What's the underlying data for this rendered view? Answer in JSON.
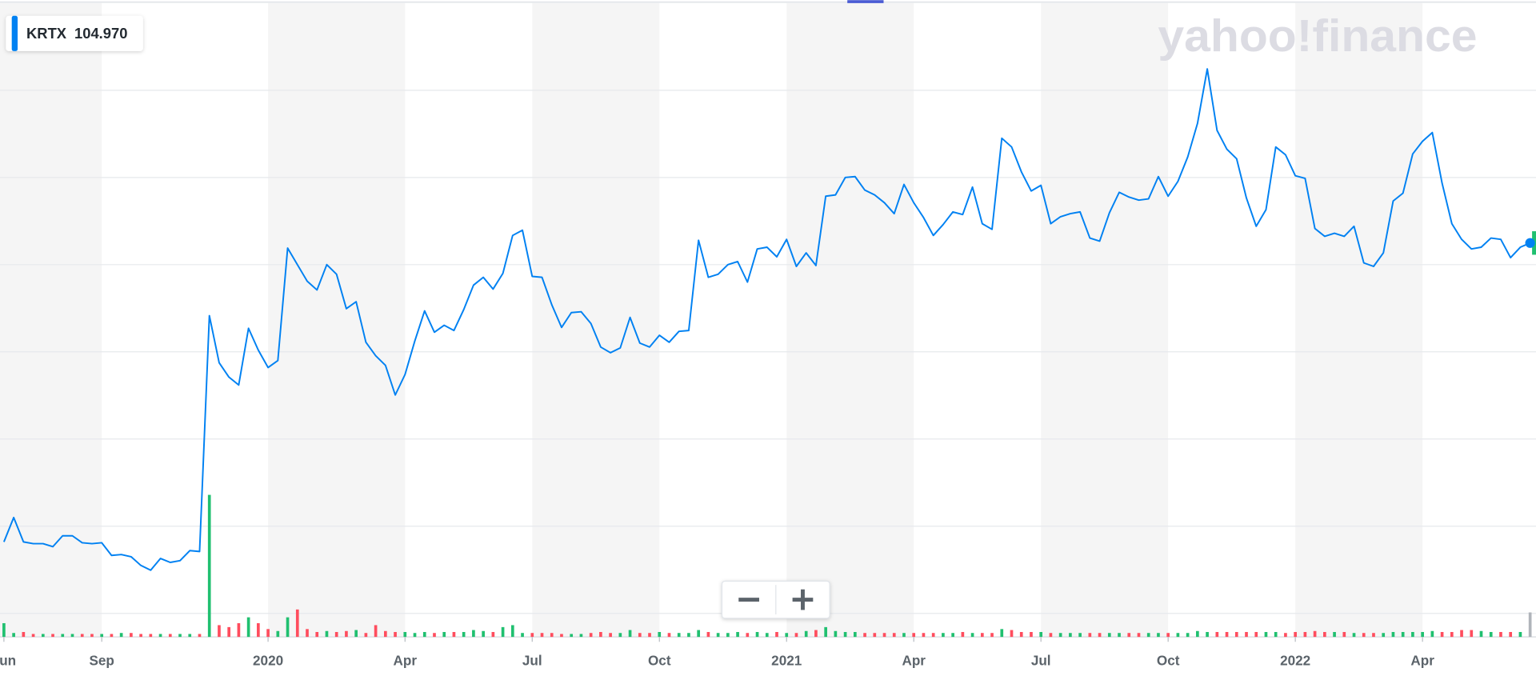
{
  "chart_data": {
    "type": "line",
    "watermark": "yahoo!finance",
    "price_label": "104.970",
    "categories": [
      "Jun",
      null,
      null,
      null,
      null,
      null,
      null,
      null,
      null,
      null,
      "Sep",
      null,
      null,
      null,
      null,
      null,
      null,
      null,
      null,
      null,
      null,
      null,
      null,
      null,
      null,
      null,
      null,
      "2020",
      null,
      null,
      null,
      null,
      null,
      null,
      null,
      null,
      null,
      null,
      null,
      null,
      null,
      "Apr",
      null,
      null,
      null,
      null,
      null,
      null,
      null,
      null,
      null,
      null,
      null,
      null,
      "Jul",
      null,
      null,
      null,
      null,
      null,
      null,
      null,
      null,
      null,
      null,
      null,
      null,
      "Oct",
      null,
      null,
      null,
      null,
      null,
      null,
      null,
      null,
      null,
      null,
      null,
      null,
      "2021",
      null,
      null,
      null,
      null,
      null,
      null,
      null,
      null,
      null,
      null,
      null,
      null,
      "Apr",
      null,
      null,
      null,
      null,
      null,
      null,
      null,
      null,
      null,
      null,
      null,
      null,
      "Jul",
      null,
      null,
      null,
      null,
      null,
      null,
      null,
      null,
      null,
      null,
      null,
      null,
      "Oct",
      null,
      null,
      null,
      null,
      null,
      null,
      null,
      null,
      null,
      null,
      null,
      null,
      "2022",
      null,
      null,
      null,
      null,
      null,
      null,
      null,
      null,
      null,
      null,
      null,
      null,
      "Apr",
      null,
      null,
      null,
      null,
      null,
      null,
      null,
      null,
      null,
      null,
      null
    ],
    "series": [
      {
        "name": "KRTX",
        "color": "#0081f2",
        "values": [
          36.4,
          42.0,
          36.4,
          36.0,
          36.0,
          35.3,
          37.8,
          37.8,
          36.2,
          36.0,
          36.2,
          33.3,
          33.5,
          33.0,
          31.0,
          29.9,
          32.6,
          31.7,
          32.1,
          34.4,
          34.2,
          88.3,
          77.5,
          74.2,
          72.4,
          85.4,
          80.4,
          76.4,
          78.0,
          103.8,
          100,
          96.2,
          94.2,
          100,
          97.8,
          89.9,
          91.5,
          82.2,
          79.1,
          76.9,
          70.1,
          74.8,
          82.5,
          89.4,
          84.5,
          86.1,
          84.9,
          89.7,
          95.3,
          97.1,
          94.4,
          98.0,
          106.7,
          107.9,
          97.3,
          97.1,
          90.8,
          85.6,
          89.0,
          89.2,
          86.5,
          81.1,
          79.8,
          80.9,
          87.9,
          82.0,
          81.1,
          83.8,
          82.2,
          84.7,
          84.9,
          105.6,
          97.1,
          97.8,
          100,
          100.7,
          96.0,
          103.6,
          104.0,
          101.8,
          105.8,
          99.6,
          102.7,
          99.8,
          115.7,
          116.0,
          120.0,
          120.2,
          117.1,
          116.0,
          114.2,
          111.7,
          118.4,
          114.2,
          110.8,
          106.7,
          109.2,
          112.1,
          111.5,
          117.8,
          109.4,
          108.1,
          129.0,
          127.0,
          121.3,
          116.9,
          118.2,
          109.4,
          111.0,
          111.7,
          112.1,
          106.1,
          105.4,
          111.9,
          116.6,
          115.5,
          114.8,
          115.1,
          120.2,
          115.7,
          119.1,
          124.7,
          132.4,
          144.9,
          130.8,
          126.5,
          124.3,
          115.3,
          108.8,
          112.6,
          127.0,
          125.2,
          120.4,
          119.8,
          108.3,
          106.5,
          107.2,
          106.5,
          108.8,
          100.4,
          99.6,
          102.7,
          114.6,
          116.4,
          125.4,
          128.3,
          130.3,
          118.7,
          109.4,
          105.8,
          103.6,
          104.0,
          106.1,
          105.8,
          101.6,
          104.0,
          104.97
        ]
      }
    ],
    "volume": [
      14,
      4,
      5,
      3,
      3,
      3,
      3,
      3,
      3,
      3,
      3,
      3,
      4,
      4,
      3,
      3,
      3,
      3,
      3,
      3,
      3,
      145,
      12,
      10,
      14,
      20,
      14,
      8,
      6,
      20,
      28,
      8,
      5,
      6,
      5,
      6,
      7,
      4,
      12,
      6,
      5,
      5,
      4,
      5,
      4,
      5,
      5,
      5,
      7,
      6,
      5,
      10,
      12,
      4,
      4,
      4,
      4,
      3,
      3,
      3,
      4,
      5,
      4,
      4,
      7,
      4,
      4,
      5,
      4,
      4,
      4,
      7,
      5,
      4,
      4,
      5,
      4,
      5,
      4,
      5,
      4,
      4,
      6,
      7,
      10,
      6,
      5,
      5,
      4,
      4,
      4,
      4,
      4,
      4,
      4,
      4,
      4,
      4,
      5,
      4,
      4,
      4,
      8,
      7,
      5,
      5,
      5,
      4,
      4,
      4,
      4,
      4,
      4,
      4,
      4,
      4,
      4,
      4,
      4,
      4,
      4,
      4,
      6,
      5,
      5,
      5,
      5,
      5,
      5,
      5,
      5,
      4,
      5,
      5,
      6,
      5,
      5,
      5,
      4,
      4,
      4,
      4,
      5,
      5,
      5,
      5,
      6,
      5,
      5,
      7,
      7,
      6,
      5,
      5,
      5,
      5,
      25
    ],
    "up_color": "#20c070",
    "down_color": "#ff4d5e",
    "ylim": [
      15,
      160
    ],
    "yticks": [
      20,
      40,
      60,
      80,
      100,
      120,
      140
    ],
    "y2lim": [
      0,
      150
    ],
    "grid": true
  }
}
